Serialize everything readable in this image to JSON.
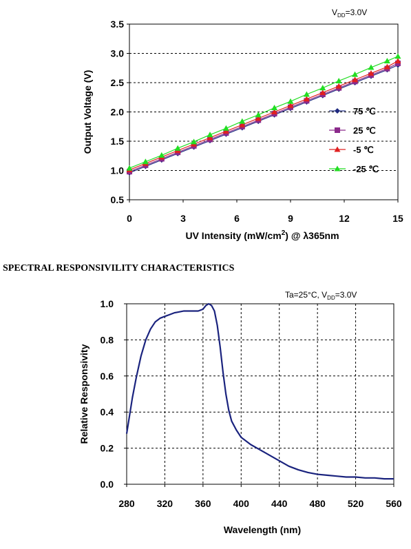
{
  "section_title": "SPECTRAL RESPONSIVILITY CHARACTERISTICS",
  "chart_data": [
    {
      "type": "line",
      "condition": {
        "prefix": "V",
        "sub": "DD",
        "suffix": "=3.0V"
      },
      "xlabel": {
        "main": "UV Intensity (mW/cm",
        "sup": "2",
        "tail": ") @ λ365nm"
      },
      "ylabel": "Output Voltage (V)",
      "xlim": [
        0,
        15
      ],
      "ylim": [
        0.5,
        3.5
      ],
      "xticks": [
        "0",
        "3",
        "6",
        "9",
        "12",
        "15"
      ],
      "yticks": [
        "3.5",
        "3.0",
        "2.5",
        "2.0",
        "1.5",
        "1.0",
        "0.5"
      ],
      "grid": "horizontal dashed",
      "legend_position": "right",
      "x": [
        0,
        0.9,
        1.8,
        2.7,
        3.6,
        4.5,
        5.4,
        6.3,
        7.2,
        8.1,
        9.0,
        9.9,
        10.8,
        11.7,
        12.6,
        13.5,
        14.4,
        15.0
      ],
      "series": [
        {
          "name": "75 ℃",
          "color": "#1f2a80",
          "marker": "diamond",
          "values": [
            0.96,
            1.07,
            1.18,
            1.29,
            1.4,
            1.51,
            1.62,
            1.73,
            1.84,
            1.95,
            2.06,
            2.17,
            2.28,
            2.39,
            2.5,
            2.61,
            2.72,
            2.8
          ]
        },
        {
          "name": "25 ℃",
          "color": "#8b2a8b",
          "marker": "square",
          "values": [
            0.98,
            1.09,
            1.2,
            1.31,
            1.42,
            1.53,
            1.64,
            1.75,
            1.86,
            1.97,
            2.08,
            2.19,
            2.3,
            2.41,
            2.52,
            2.63,
            2.74,
            2.83
          ]
        },
        {
          "name": "-5 ℃",
          "color": "#e02020",
          "marker": "triangle",
          "values": [
            1.01,
            1.12,
            1.23,
            1.34,
            1.45,
            1.56,
            1.67,
            1.78,
            1.89,
            2.0,
            2.11,
            2.22,
            2.33,
            2.44,
            2.55,
            2.66,
            2.77,
            2.87
          ]
        },
        {
          "name": "-25 ℃",
          "color": "#22dd22",
          "marker": "triangle",
          "values": [
            1.04,
            1.15,
            1.26,
            1.38,
            1.49,
            1.61,
            1.72,
            1.84,
            1.95,
            2.07,
            2.18,
            2.3,
            2.41,
            2.53,
            2.64,
            2.76,
            2.87,
            2.95
          ]
        }
      ]
    },
    {
      "type": "line",
      "condition": {
        "prefix": "Ta=25°C, V",
        "sub": "DD",
        "suffix": "=3.0V"
      },
      "xlabel": "Wavelength (nm)",
      "ylabel": "Relative Responsivity",
      "xlim": [
        280,
        560
      ],
      "ylim": [
        0,
        1.0
      ],
      "xticks": [
        "280",
        "320",
        "360",
        "400",
        "440",
        "480",
        "520",
        "560"
      ],
      "yticks": [
        "1.0",
        "0.8",
        "0.6",
        "0.4",
        "0.2",
        "0.0"
      ],
      "grid": "both dashed",
      "color": "#1a237e",
      "x": [
        280,
        283,
        286,
        290,
        295,
        300,
        305,
        310,
        315,
        320,
        325,
        330,
        335,
        340,
        345,
        350,
        355,
        360,
        363,
        366,
        369,
        372,
        375,
        378,
        381,
        384,
        387,
        390,
        395,
        400,
        410,
        420,
        430,
        440,
        450,
        460,
        470,
        480,
        490,
        500,
        510,
        520,
        530,
        540,
        550,
        560
      ],
      "values": [
        0.28,
        0.38,
        0.48,
        0.59,
        0.71,
        0.8,
        0.86,
        0.9,
        0.92,
        0.93,
        0.94,
        0.95,
        0.955,
        0.96,
        0.96,
        0.96,
        0.96,
        0.97,
        0.99,
        1.0,
        0.99,
        0.96,
        0.88,
        0.76,
        0.62,
        0.5,
        0.41,
        0.35,
        0.3,
        0.26,
        0.22,
        0.19,
        0.16,
        0.13,
        0.1,
        0.08,
        0.065,
        0.055,
        0.05,
        0.045,
        0.04,
        0.04,
        0.035,
        0.035,
        0.03,
        0.03
      ]
    }
  ]
}
